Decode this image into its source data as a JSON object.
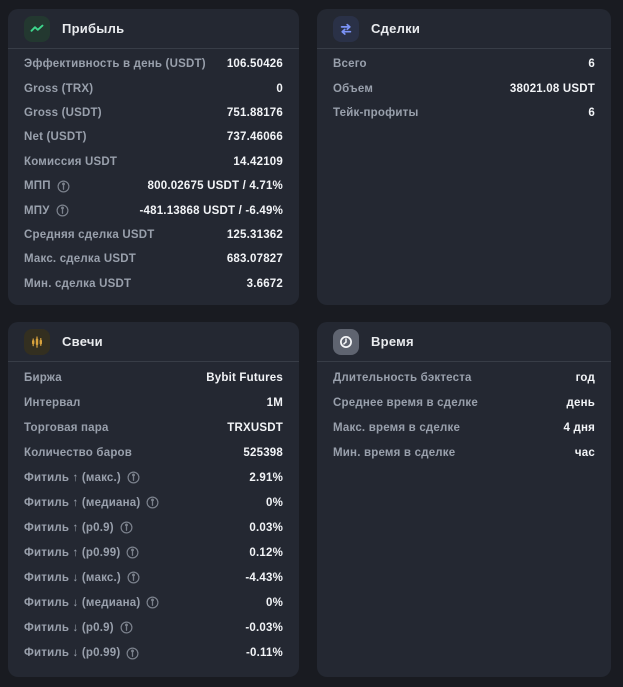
{
  "cards": {
    "profit": {
      "title": "Прибыль",
      "icon": "trend-line-icon",
      "rows": [
        {
          "label": "Эффективность в день (USDT)",
          "value": "106.50426"
        },
        {
          "label": "Gross (TRX)",
          "value": "0"
        },
        {
          "label": "Gross (USDT)",
          "value": "751.88176"
        },
        {
          "label": "Net (USDT)",
          "value": "737.46066"
        },
        {
          "label": "Комиссия USDT",
          "value": "14.42109"
        },
        {
          "label": "МПП",
          "info": true,
          "value": "800.02675 USDT / 4.71%"
        },
        {
          "label": "МПУ",
          "info": true,
          "value": "-481.13868 USDT / -6.49%"
        },
        {
          "label": "Средняя сделка USDT",
          "value": "125.31362"
        },
        {
          "label": "Макс. сделка USDT",
          "value": "683.07827"
        },
        {
          "label": "Мин. сделка USDT",
          "value": "3.6672"
        }
      ]
    },
    "trades": {
      "title": "Сделки",
      "icon": "swap-arrows-icon",
      "rows": [
        {
          "label": "Всего",
          "value": "6"
        },
        {
          "label": "Объем",
          "value": "38021.08 USDT"
        },
        {
          "label": "Тейк-профиты",
          "value": "6"
        }
      ]
    },
    "candles": {
      "title": "Свечи",
      "icon": "candlestick-icon",
      "rows": [
        {
          "label": "Биржа",
          "value": "Bybit Futures"
        },
        {
          "label": "Интервал",
          "value": "1M"
        },
        {
          "label": "Торговая пара",
          "value": "TRXUSDT"
        },
        {
          "label": "Количество баров",
          "value": "525398"
        },
        {
          "label": "Фитиль ↑ (макс.)",
          "info": true,
          "value": "2.91%"
        },
        {
          "label": "Фитиль ↑ (медиана)",
          "info": true,
          "value": "0%"
        },
        {
          "label": "Фитиль ↑ (p0.9)",
          "info": true,
          "value": "0.03%"
        },
        {
          "label": "Фитиль ↑ (p0.99)",
          "info": true,
          "value": "0.12%"
        },
        {
          "label": "Фитиль ↓ (макс.)",
          "info": true,
          "value": "-4.43%"
        },
        {
          "label": "Фитиль ↓ (медиана)",
          "info": true,
          "value": "0%"
        },
        {
          "label": "Фитиль ↓ (p0.9)",
          "info": true,
          "value": "-0.03%"
        },
        {
          "label": "Фитиль ↓ (p0.99)",
          "info": true,
          "value": "-0.11%"
        }
      ]
    },
    "time": {
      "title": "Время",
      "icon": "clock-icon",
      "rows": [
        {
          "label": "Длительность бэктеста",
          "value": "год"
        },
        {
          "label": "Среднее время в сделке",
          "value": "день"
        },
        {
          "label": "Макс. время в сделке",
          "value": "4 дня"
        },
        {
          "label": "Мин. время в сделке",
          "value": "час"
        }
      ]
    }
  },
  "colors": {
    "page_bg": "#191b21",
    "card_bg": "#242832",
    "divider": "#383d47",
    "label_text": "#99a0ac",
    "value_text": "#f2f4f7",
    "profit_icon_bg": "#233830",
    "profit_icon": "#3dd68c",
    "trades_icon_bg": "#2a3147",
    "trades_icon": "#7b93f7",
    "candles_icon_bg": "#332f20",
    "candles_icon": "#d7a23d",
    "time_icon_bg": "#5f6470",
    "time_icon": "#f5f6f8"
  }
}
